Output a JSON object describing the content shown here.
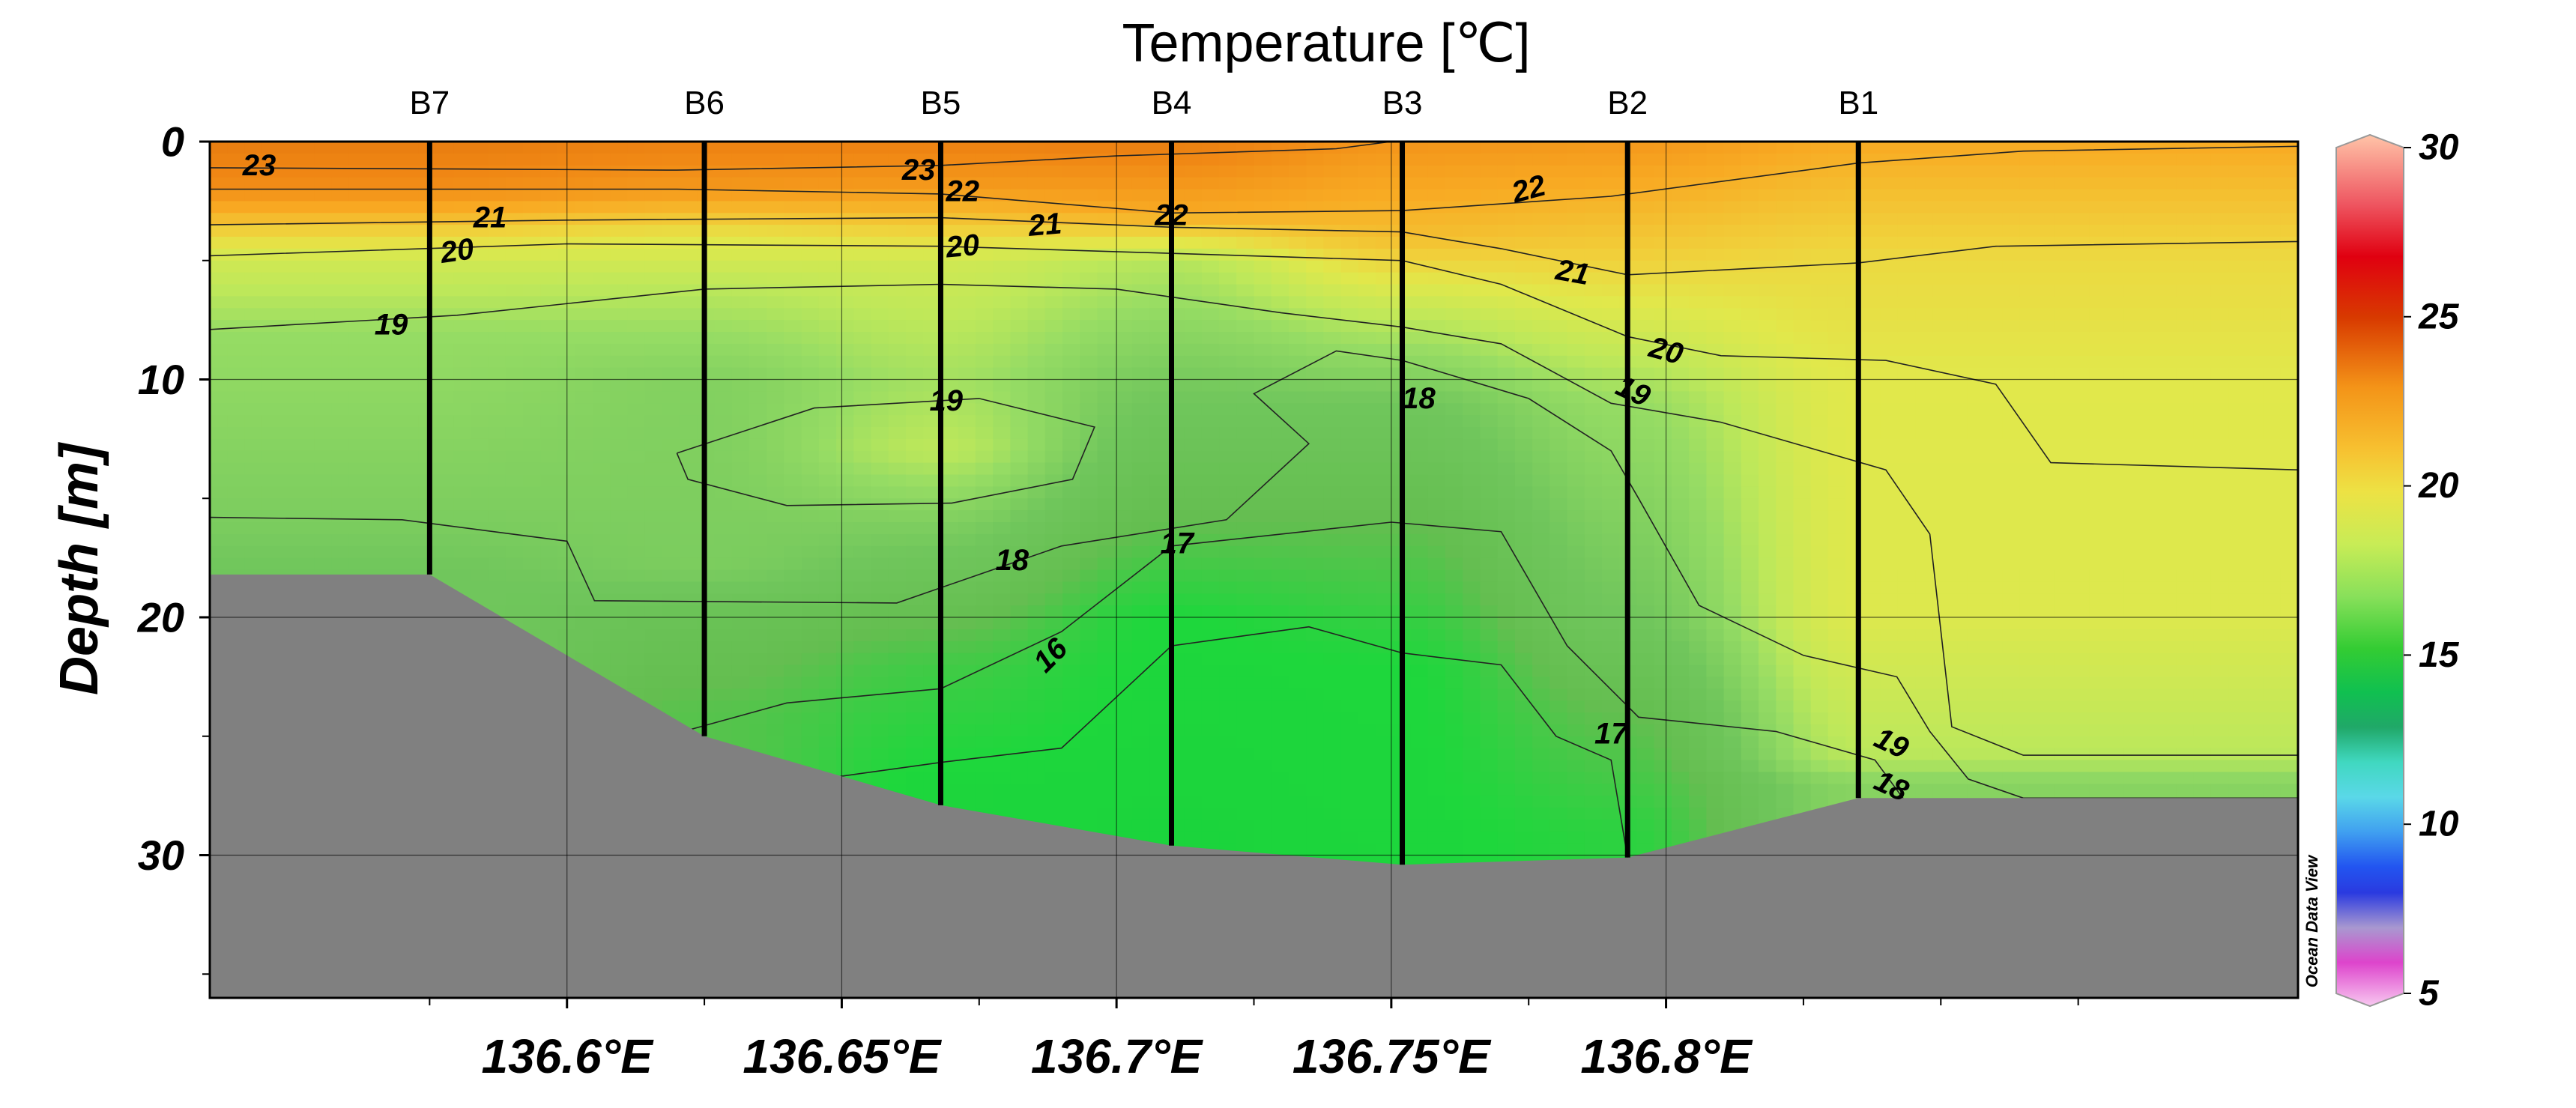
{
  "chart_data": {
    "type": "heatmap",
    "title": "Temperature [℃]",
    "ylabel": "Depth [m]",
    "xlabel": "",
    "xlim": [
      136.535,
      136.915
    ],
    "ylim": [
      36,
      0
    ],
    "y_inverted": true,
    "grid": true,
    "x_ticks": [
      {
        "value": 136.6,
        "label": "136.6°E"
      },
      {
        "value": 136.65,
        "label": "136.65°E"
      },
      {
        "value": 136.7,
        "label": "136.7°E"
      },
      {
        "value": 136.75,
        "label": "136.75°E"
      },
      {
        "value": 136.8,
        "label": "136.8°E"
      }
    ],
    "x_minor_ticks": [
      136.575,
      136.625,
      136.675,
      136.725,
      136.775,
      136.825,
      136.85,
      136.875
    ],
    "y_ticks": [
      {
        "value": 0,
        "label": "0"
      },
      {
        "value": 10,
        "label": "10"
      },
      {
        "value": 20,
        "label": "20"
      },
      {
        "value": 30,
        "label": "30"
      }
    ],
    "y_minor_ticks": [
      5,
      15,
      25,
      35
    ],
    "colorbar": {
      "min": 5,
      "max": 30,
      "ticks": [
        {
          "value": 30,
          "label": "30"
        },
        {
          "value": 25,
          "label": "25"
        },
        {
          "value": 20,
          "label": "20"
        },
        {
          "value": 15,
          "label": "15"
        },
        {
          "value": 10,
          "label": "10"
        },
        {
          "value": 5,
          "label": "5"
        }
      ]
    },
    "stations": [
      {
        "name": "B7",
        "lon": 136.575,
        "bottom_depth": 18.2
      },
      {
        "name": "B6",
        "lon": 136.625,
        "bottom_depth": 25.0
      },
      {
        "name": "B5",
        "lon": 136.668,
        "bottom_depth": 27.9
      },
      {
        "name": "B4",
        "lon": 136.71,
        "bottom_depth": 29.6
      },
      {
        "name": "B3",
        "lon": 136.752,
        "bottom_depth": 30.4
      },
      {
        "name": "B2",
        "lon": 136.793,
        "bottom_depth": 30.1
      },
      {
        "name": "B1",
        "lon": 136.835,
        "bottom_depth": 27.6
      }
    ],
    "bathymetry": [
      [
        136.535,
        18.2
      ],
      [
        136.575,
        18.2
      ],
      [
        136.625,
        25.0
      ],
      [
        136.668,
        27.9
      ],
      [
        136.71,
        29.6
      ],
      [
        136.752,
        30.4
      ],
      [
        136.793,
        30.1
      ],
      [
        136.835,
        27.6
      ],
      [
        136.915,
        27.6
      ]
    ],
    "temperature_profiles": [
      {
        "station": "B7",
        "values": [
          [
            0,
            23.4
          ],
          [
            2,
            22.8
          ],
          [
            4,
            20.8
          ],
          [
            5,
            20.0
          ],
          [
            8,
            19.0
          ],
          [
            16,
            18.3
          ],
          [
            18,
            18.0
          ]
        ]
      },
      {
        "station": "B6",
        "values": [
          [
            0,
            23.2
          ],
          [
            2,
            22.5
          ],
          [
            4,
            20.5
          ],
          [
            6,
            19.6
          ],
          [
            10,
            18.5
          ],
          [
            18,
            18.3
          ],
          [
            20,
            17.5
          ],
          [
            24,
            16.8
          ]
        ]
      },
      {
        "station": "B5",
        "values": [
          [
            0,
            23.2
          ],
          [
            2,
            22.4
          ],
          [
            4,
            20.8
          ],
          [
            5,
            20.0
          ],
          [
            10,
            19.2
          ],
          [
            13,
            19.6
          ],
          [
            16,
            18.4
          ],
          [
            22,
            16.5
          ],
          [
            27,
            15.9
          ]
        ]
      },
      {
        "station": "B4",
        "values": [
          [
            0,
            23.3
          ],
          [
            3,
            22.0
          ],
          [
            5,
            19.5
          ],
          [
            10,
            18.2
          ],
          [
            16,
            17.0
          ],
          [
            20,
            16.0
          ],
          [
            29,
            15.8
          ]
        ]
      },
      {
        "station": "B3",
        "values": [
          [
            0,
            22.6
          ],
          [
            4,
            21.5
          ],
          [
            7,
            19.8
          ],
          [
            11,
            18.0
          ],
          [
            16,
            17.0
          ],
          [
            22,
            16.0
          ],
          [
            30,
            15.9
          ]
        ]
      },
      {
        "station": "B2",
        "values": [
          [
            0,
            22.5
          ],
          [
            5,
            21.0
          ],
          [
            11,
            19.0
          ],
          [
            20,
            18.0
          ],
          [
            24,
            17.0
          ],
          [
            29,
            16.2
          ]
        ]
      },
      {
        "station": "B1",
        "values": [
          [
            0,
            22.0
          ],
          [
            5,
            20.8
          ],
          [
            10,
            20.4
          ],
          [
            20,
            20.3
          ],
          [
            26,
            19.5
          ],
          [
            27,
            18.6
          ]
        ]
      }
    ],
    "contours": [
      {
        "level": 23,
        "label": "23",
        "points": [
          [
            136.535,
            1.1
          ],
          [
            136.62,
            1.2
          ],
          [
            136.668,
            1.0
          ],
          [
            136.7,
            0.6
          ],
          [
            136.74,
            0.3
          ],
          [
            136.75,
            0.0
          ]
        ]
      },
      {
        "level": 22,
        "label": "22",
        "points": [
          [
            136.535,
            2.0
          ],
          [
            136.62,
            2.0
          ],
          [
            136.668,
            2.2
          ],
          [
            136.71,
            3.0
          ],
          [
            136.752,
            2.9
          ],
          [
            136.79,
            2.3
          ],
          [
            136.835,
            0.9
          ],
          [
            136.865,
            0.4
          ],
          [
            136.915,
            0.2
          ]
        ]
      },
      {
        "level": 21,
        "label": "21",
        "points": [
          [
            136.535,
            3.5
          ],
          [
            136.6,
            3.3
          ],
          [
            136.668,
            3.2
          ],
          [
            136.71,
            3.6
          ],
          [
            136.752,
            3.8
          ],
          [
            136.77,
            4.5
          ],
          [
            136.793,
            5.6
          ],
          [
            136.835,
            5.1
          ],
          [
            136.86,
            4.4
          ],
          [
            136.915,
            4.2
          ]
        ]
      },
      {
        "level": 20,
        "label": "20",
        "points": [
          [
            136.535,
            4.8
          ],
          [
            136.6,
            4.3
          ],
          [
            136.668,
            4.4
          ],
          [
            136.71,
            4.7
          ],
          [
            136.752,
            5.0
          ],
          [
            136.77,
            6.0
          ],
          [
            136.793,
            8.2
          ],
          [
            136.81,
            9.0
          ],
          [
            136.84,
            9.2
          ],
          [
            136.86,
            10.2
          ],
          [
            136.87,
            13.5
          ],
          [
            136.915,
            13.8
          ]
        ]
      },
      {
        "level": 19,
        "label": "19",
        "points": [
          [
            136.535,
            7.9
          ],
          [
            136.58,
            7.3
          ],
          [
            136.625,
            6.2
          ],
          [
            136.668,
            6.0
          ],
          [
            136.7,
            6.2
          ],
          [
            136.73,
            7.2
          ],
          [
            136.752,
            7.8
          ],
          [
            136.77,
            8.5
          ],
          [
            136.79,
            11.0
          ],
          [
            136.81,
            11.8
          ],
          [
            136.84,
            13.8
          ],
          [
            136.848,
            16.5
          ],
          [
            136.852,
            24.6
          ],
          [
            136.865,
            25.8
          ],
          [
            136.915,
            25.8
          ]
        ]
      },
      {
        "level": 19,
        "label": "19",
        "points": [
          [
            136.62,
            13.1
          ],
          [
            136.645,
            11.2
          ],
          [
            136.675,
            10.8
          ],
          [
            136.696,
            12.0
          ],
          [
            136.692,
            14.2
          ],
          [
            136.67,
            15.2
          ],
          [
            136.64,
            15.3
          ],
          [
            136.622,
            14.2
          ],
          [
            136.62,
            13.1
          ]
        ]
      },
      {
        "level": 18,
        "label": "18",
        "points": [
          [
            136.535,
            15.8
          ],
          [
            136.57,
            15.9
          ],
          [
            136.6,
            16.8
          ],
          [
            136.605,
            19.3
          ],
          [
            136.66,
            19.4
          ],
          [
            136.68,
            17.8
          ],
          [
            136.69,
            17.0
          ],
          [
            136.72,
            15.9
          ],
          [
            136.735,
            12.7
          ],
          [
            136.725,
            10.6
          ],
          [
            136.74,
            8.8
          ],
          [
            136.752,
            9.2
          ],
          [
            136.775,
            10.8
          ],
          [
            136.79,
            13.0
          ],
          [
            136.795,
            15.0
          ],
          [
            136.806,
            19.5
          ],
          [
            136.825,
            21.6
          ],
          [
            136.842,
            22.5
          ],
          [
            136.848,
            24.8
          ],
          [
            136.855,
            26.8
          ],
          [
            136.865,
            27.6
          ],
          [
            136.915,
            27.6
          ]
        ]
      },
      {
        "level": 17,
        "label": "17",
        "points": [
          [
            136.618,
            25.0
          ],
          [
            136.64,
            23.6
          ],
          [
            136.668,
            23.0
          ],
          [
            136.69,
            20.6
          ],
          [
            136.71,
            17.0
          ],
          [
            136.75,
            16.0
          ],
          [
            136.77,
            16.4
          ],
          [
            136.782,
            21.2
          ],
          [
            136.795,
            24.2
          ],
          [
            136.82,
            24.8
          ],
          [
            136.838,
            26.0
          ],
          [
            136.845,
            28.2
          ],
          [
            136.848,
            29.5
          ]
        ]
      },
      {
        "level": 16,
        "label": "16",
        "points": [
          [
            136.64,
            27.0
          ],
          [
            136.668,
            26.1
          ],
          [
            136.69,
            25.5
          ],
          [
            136.71,
            21.2
          ],
          [
            136.735,
            20.4
          ],
          [
            136.752,
            21.5
          ],
          [
            136.77,
            22.0
          ],
          [
            136.78,
            25.0
          ],
          [
            136.79,
            26.0
          ],
          [
            136.793,
            30.1
          ]
        ]
      }
    ],
    "contour_labels": [
      {
        "text": "23",
        "lon": 136.544,
        "depth": 1.0,
        "angle": 0
      },
      {
        "text": "23",
        "lon": 136.664,
        "depth": 1.2,
        "angle": 0
      },
      {
        "text": "22",
        "lon": 136.672,
        "depth": 2.1,
        "angle": 0
      },
      {
        "text": "22",
        "lon": 136.71,
        "depth": 3.1,
        "angle": 0
      },
      {
        "text": "22",
        "lon": 136.775,
        "depth": 2.0,
        "angle": -15
      },
      {
        "text": "21",
        "lon": 136.586,
        "depth": 3.2,
        "angle": 0
      },
      {
        "text": "21",
        "lon": 136.687,
        "depth": 3.5,
        "angle": -5
      },
      {
        "text": "21",
        "lon": 136.783,
        "depth": 5.5,
        "angle": 10
      },
      {
        "text": "20",
        "lon": 136.58,
        "depth": 4.6,
        "angle": -8
      },
      {
        "text": "20",
        "lon": 136.672,
        "depth": 4.4,
        "angle": -5
      },
      {
        "text": "20",
        "lon": 136.8,
        "depth": 8.8,
        "angle": 15
      },
      {
        "text": "19",
        "lon": 136.568,
        "depth": 7.7,
        "angle": 0
      },
      {
        "text": "19",
        "lon": 136.669,
        "depth": 10.9,
        "angle": 0
      },
      {
        "text": "19",
        "lon": 136.794,
        "depth": 10.5,
        "angle": 25
      },
      {
        "text": "19",
        "lon": 136.841,
        "depth": 25.3,
        "angle": 25
      },
      {
        "text": "18",
        "lon": 136.755,
        "depth": 10.8,
        "angle": 0
      },
      {
        "text": "18",
        "lon": 136.681,
        "depth": 17.6,
        "angle": 0
      },
      {
        "text": "18",
        "lon": 136.841,
        "depth": 27.1,
        "angle": 25
      },
      {
        "text": "17",
        "lon": 136.711,
        "depth": 16.9,
        "angle": 0
      },
      {
        "text": "17",
        "lon": 136.79,
        "depth": 24.9,
        "angle": 0
      },
      {
        "text": "16",
        "lon": 136.688,
        "depth": 21.6,
        "angle": -45
      }
    ],
    "credit": "Ocean Data View"
  }
}
